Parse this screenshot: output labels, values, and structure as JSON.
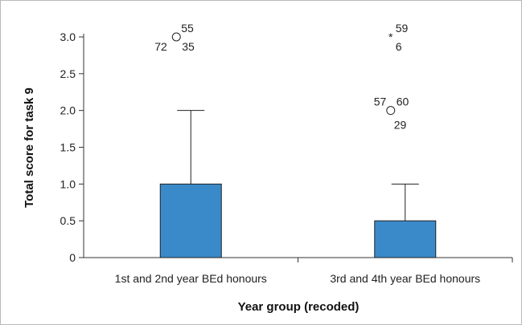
{
  "chart_data": {
    "type": "box",
    "xlabel": "Year group (recoded)",
    "ylabel": "Total score for task 9",
    "ylim": [
      0,
      3
    ],
    "yticks": [
      "0",
      "0.5",
      "1.0",
      "1.5",
      "2.0",
      "2.5",
      "3.0"
    ],
    "ytick_values": [
      0,
      0.5,
      1.0,
      1.5,
      2.0,
      2.5,
      3.0
    ],
    "box_color": "#3a8ac9",
    "categories": [
      "1st and 2nd year BEd honours",
      "3rd and 4th year BEd honours"
    ],
    "boxes": [
      {
        "category": "1st and 2nd year BEd honours",
        "min": 0,
        "q1": 0,
        "median": 0,
        "q3": 1.0,
        "max": 2.0,
        "outliers": [
          {
            "value": 3.0,
            "marker": "circle",
            "labels": [
              "55",
              "72",
              "35"
            ]
          }
        ]
      },
      {
        "category": "3rd and 4th year BEd honours",
        "min": 0,
        "q1": 0,
        "median": 0,
        "q3": 0.5,
        "max": 1.0,
        "outliers": [
          {
            "value": 3.0,
            "marker": "star",
            "labels": [
              "59",
              "6"
            ]
          },
          {
            "value": 2.0,
            "marker": "circle",
            "labels": [
              "57",
              "60",
              "29"
            ]
          }
        ]
      }
    ]
  }
}
